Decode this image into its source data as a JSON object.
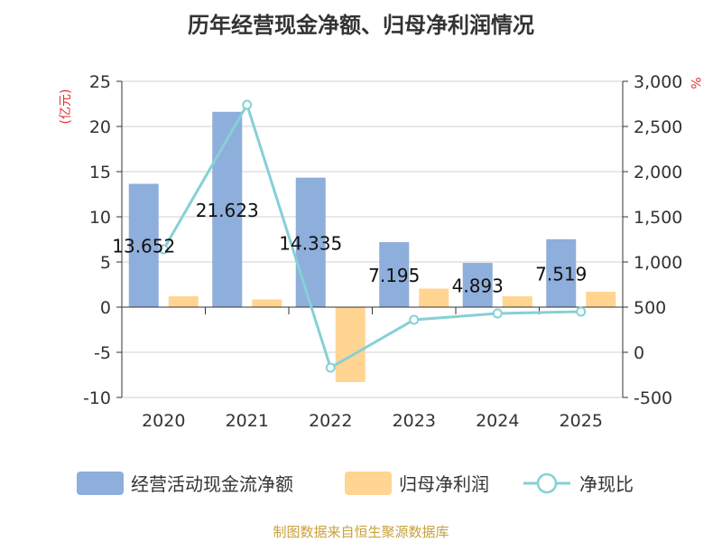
{
  "title": "历年经营现金净额、归母净利润情况",
  "source": "制图数据来自恒生聚源数据库",
  "chart_data": {
    "type": "bar",
    "title": "历年经营现金净额、归母净利润情况",
    "categories": [
      "2020",
      "2021",
      "2022",
      "2023",
      "2024",
      "2025"
    ],
    "y_left": {
      "unit": "(亿元)",
      "range": [
        -10,
        25
      ],
      "ticks": [
        -10,
        -5,
        0,
        5,
        10,
        15,
        20,
        25
      ]
    },
    "y_right": {
      "unit": "%",
      "range": [
        -500,
        3000
      ],
      "ticks": [
        -500,
        0,
        500,
        1000,
        1500,
        2000,
        2500,
        3000
      ],
      "tick_labels": [
        "-500",
        "0",
        "500",
        "1,000",
        "1,500",
        "2,000",
        "2,500",
        "3,000"
      ]
    },
    "series": [
      {
        "name": "经营活动现金流净额",
        "kind": "bar",
        "axis": "left",
        "color": "#8eaedb",
        "values": [
          13.652,
          21.623,
          14.335,
          7.195,
          4.893,
          7.519
        ],
        "labels": [
          "13.652",
          "21.623",
          "14.335",
          "7.195",
          "4.893",
          "7.519"
        ]
      },
      {
        "name": "归母净利润",
        "kind": "bar",
        "axis": "left",
        "color": "#ffd591",
        "values": [
          1.2,
          0.85,
          -8.3,
          2.05,
          1.2,
          1.7
        ]
      },
      {
        "name": "净现比",
        "kind": "line",
        "axis": "right",
        "color": "#86d0d6",
        "values": [
          1140,
          2740,
          -170,
          360,
          430,
          450
        ]
      }
    ],
    "legend_position": "bottom",
    "grid": true
  }
}
